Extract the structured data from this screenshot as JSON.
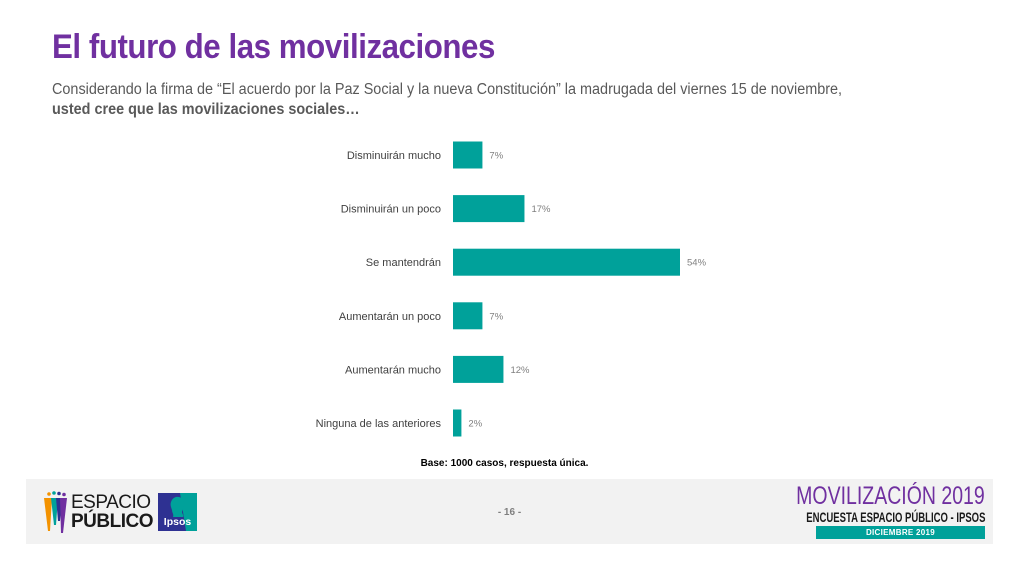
{
  "header": {
    "title": "El futuro de las movilizaciones",
    "question_line1": "Considerando la firma de “El acuerdo por la Paz Social y la nueva Constitución” la madrugada del viernes 15 de noviembre,",
    "question_line2": "usted cree que las movilizaciones sociales…"
  },
  "chart_data": {
    "type": "bar",
    "orientation": "horizontal",
    "title": "El futuro de las movilizaciones",
    "xlabel": "",
    "ylabel": "",
    "xlim": [
      0,
      54
    ],
    "grid": false,
    "legend": "none",
    "bar_color": "#00a19a",
    "categories": [
      "Disminuirán mucho",
      "Disminuirán un poco",
      "Se mantendrán",
      "Aumentarán un poco",
      "Aumentarán mucho",
      "Ninguna de las anteriores"
    ],
    "values": [
      7,
      17,
      54,
      7,
      12,
      2
    ],
    "value_labels": [
      "7%",
      "17%",
      "54%",
      "7%",
      "12%",
      "2%"
    ],
    "unit": "%"
  },
  "base_note": "Base: 1000 casos, respuesta única.",
  "footer": {
    "logo_espacio_line1": "ESPACIO",
    "logo_espacio_line2": "PÚBLICO",
    "logo_ipsos": "Ipsos",
    "page_number": "- 16 -",
    "survey_title": "MOVILIZACIÓN 2019",
    "survey_subtitle": "ENCUESTA ESPACIO PÚBLICO - IPSOS",
    "survey_date": "DICIEMBRE 2019"
  },
  "colors": {
    "title_purple": "#7030a0",
    "bar_teal": "#00a19a",
    "footer_bg": "#f2f2f2"
  }
}
